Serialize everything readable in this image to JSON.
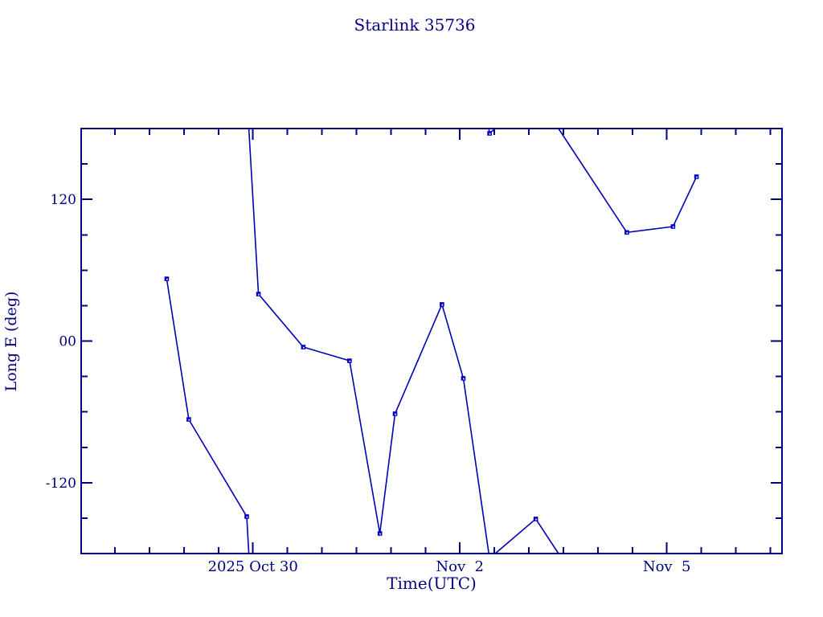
{
  "page": {
    "background": "#ffffff"
  },
  "chart_data": {
    "type": "line",
    "title": "Starlink 35736",
    "xlabel": "Time(UTC)",
    "ylabel": "Long E (deg)",
    "legend": "none",
    "grid": "off",
    "marker": "square",
    "colors": {
      "line": "#0000b4",
      "marker": "#0000c0",
      "marker_center": "#ffffff",
      "axis": "#000080",
      "text": "#000080",
      "background": "#ffffff"
    },
    "x_axis": {
      "unit": "days relative to 2025 Oct 30 00:00 UTC",
      "range": [
        -2.49,
        7.67
      ],
      "major_ticks": [
        {
          "day": 0,
          "label": "2025 Oct 30"
        },
        {
          "day": 3,
          "label": "Nov  2"
        },
        {
          "day": 6,
          "label": "Nov  5"
        }
      ],
      "minor_tick_step_days": 0.5
    },
    "y_axis": {
      "unit": "degrees east longitude",
      "range": [
        -180,
        180
      ],
      "wrap_at_deg": 180,
      "major_ticks": [
        {
          "deg": 120,
          "label": "120"
        },
        {
          "deg": 0,
          "label": "00"
        },
        {
          "deg": -120,
          "label": "-120"
        }
      ],
      "minor_tick_step_deg": 30
    },
    "series": [
      {
        "name": "Starlink 35736 longitude",
        "points": [
          {
            "day": -1.25,
            "deg": 52.7
          },
          {
            "day": -0.93,
            "deg": -66.4
          },
          {
            "day": -0.09,
            "deg": -148.7
          },
          {
            "day": 0.08,
            "deg": 39.8
          },
          {
            "day": 0.73,
            "deg": -5.1
          },
          {
            "day": 1.4,
            "deg": -16.7
          },
          {
            "day": 1.84,
            "deg": -163.0
          },
          {
            "day": 2.06,
            "deg": -61.6
          },
          {
            "day": 2.74,
            "deg": 31.0
          },
          {
            "day": 3.05,
            "deg": -31.6
          },
          {
            "day": 3.43,
            "deg": 175.9
          },
          {
            "day": 4.1,
            "deg": -150.7
          },
          {
            "day": 5.42,
            "deg": 92.0
          },
          {
            "day": 6.09,
            "deg": 97.0
          },
          {
            "day": 6.43,
            "deg": 139.2
          }
        ]
      }
    ]
  }
}
